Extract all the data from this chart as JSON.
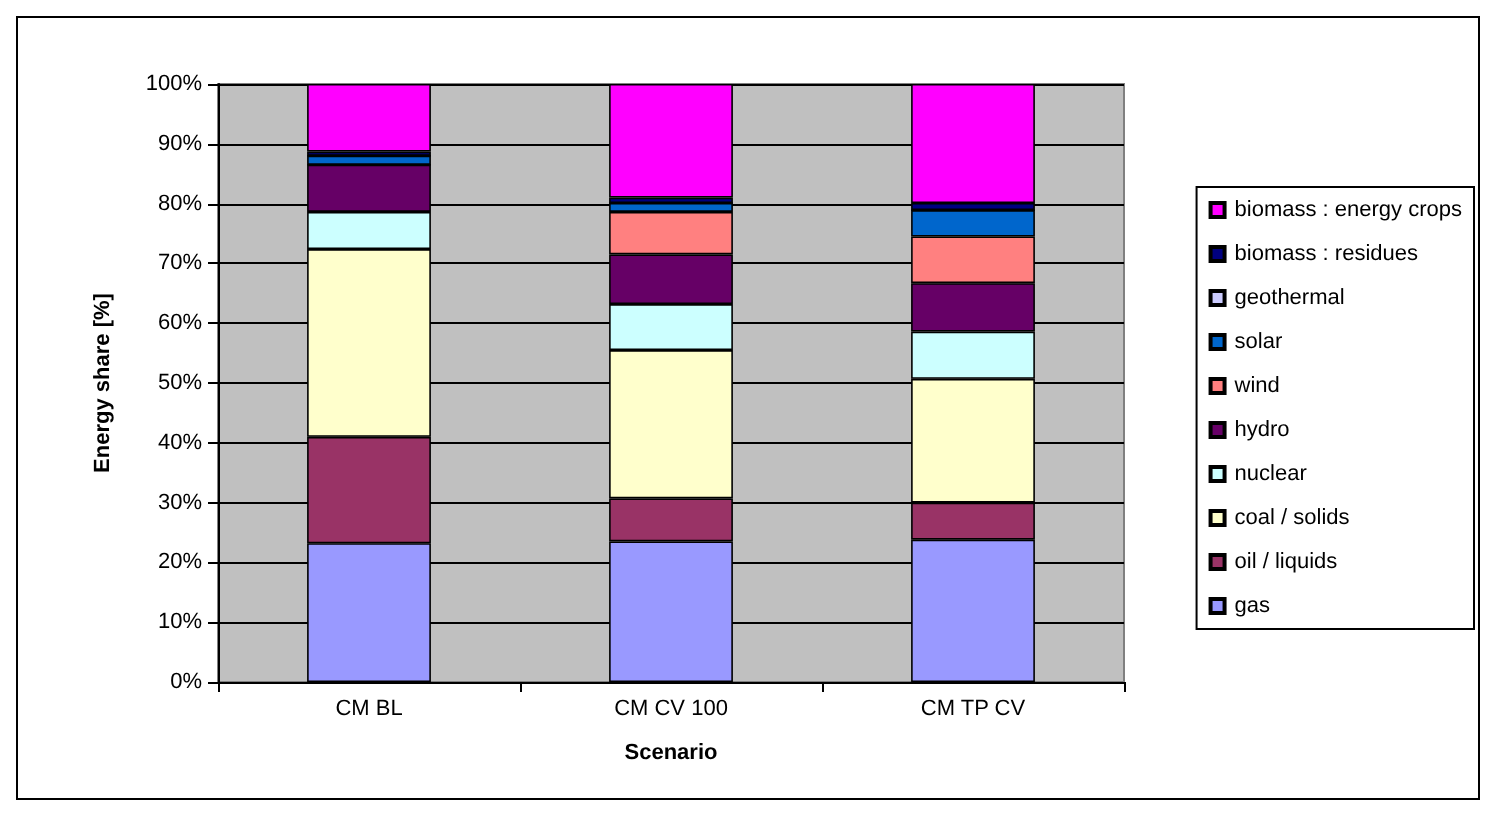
{
  "chart_data": {
    "type": "bar",
    "stacked": true,
    "xlabel": "Scenario",
    "ylabel": "Energy share [%]",
    "categories": [
      "CM BL",
      "CM CV 100",
      "CM TP CV"
    ],
    "series": [
      {
        "name": "gas",
        "color": "#9999ff",
        "values": [
          23.2,
          23.5,
          23.8
        ]
      },
      {
        "name": "oil / liquids",
        "color": "#993366",
        "values": [
          17.8,
          7.2,
          6.2
        ]
      },
      {
        "name": "coal / solids",
        "color": "#ffffcc",
        "values": [
          31.4,
          24.8,
          20.7
        ]
      },
      {
        "name": "nuclear",
        "color": "#ccffff",
        "values": [
          6.2,
          7.7,
          7.9
        ]
      },
      {
        "name": "hydro",
        "color": "#660066",
        "values": [
          7.9,
          8.3,
          8.1
        ]
      },
      {
        "name": "wind",
        "color": "#ff8080",
        "values": [
          0,
          7.1,
          7.8
        ]
      },
      {
        "name": "solar",
        "color": "#0066cc",
        "values": [
          1.5,
          1.5,
          4.4
        ]
      },
      {
        "name": "geothermal",
        "color": "#ccccff",
        "values": [
          0,
          0,
          0
        ]
      },
      {
        "name": "biomass : residues",
        "color": "#000080",
        "values": [
          0.7,
          0.9,
          1.2
        ]
      },
      {
        "name": "biomass : energy crops",
        "color": "#ff00ff",
        "values": [
          11.3,
          19.0,
          19.9
        ]
      }
    ],
    "ylim": [
      0,
      100
    ],
    "yticks": [
      {
        "value": 0,
        "label": "0%"
      },
      {
        "value": 10,
        "label": "10%"
      },
      {
        "value": 20,
        "label": "20%"
      },
      {
        "value": 30,
        "label": "30%"
      },
      {
        "value": 40,
        "label": "40%"
      },
      {
        "value": 50,
        "label": "50%"
      },
      {
        "value": 60,
        "label": "60%"
      },
      {
        "value": 70,
        "label": "70%"
      },
      {
        "value": 80,
        "label": "80%"
      },
      {
        "value": 90,
        "label": "90%"
      },
      {
        "value": 100,
        "label": "100%"
      }
    ],
    "grid": "y",
    "legend": "right"
  }
}
